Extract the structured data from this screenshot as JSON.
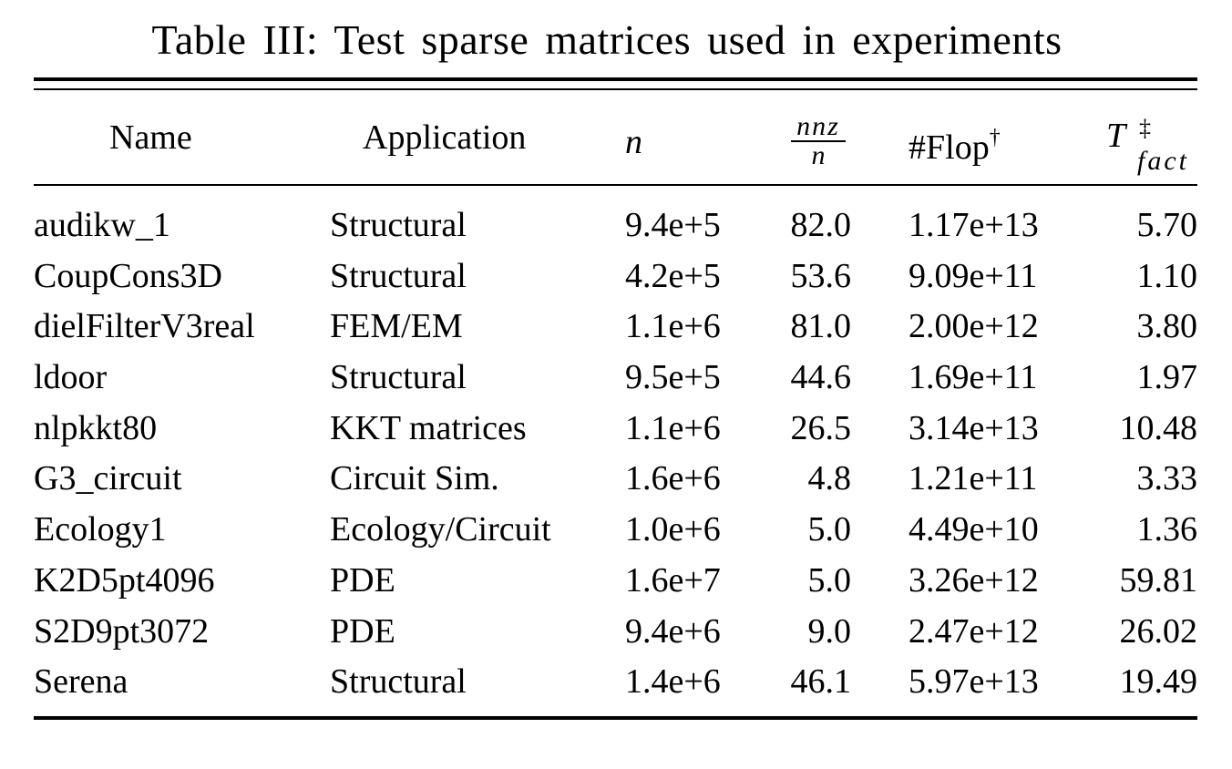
{
  "caption": "Table III: Test sparse matrices used in experiments",
  "headers": {
    "name": "Name",
    "application": "Application",
    "n": "n",
    "nnz_num": "nnz",
    "nnz_den": "n",
    "flop": "#Flop",
    "flop_mark": "†",
    "t_base": "T",
    "t_mark": "‡",
    "t_sub": "fact"
  },
  "rows": [
    {
      "name": "audikw_1",
      "application": "Structural",
      "n": "9.4e+5",
      "nnz_per_n": "82.0",
      "flop": "1.17e+13",
      "t_fact": "5.70"
    },
    {
      "name": "CoupCons3D",
      "application": "Structural",
      "n": "4.2e+5",
      "nnz_per_n": "53.6",
      "flop": "9.09e+11",
      "t_fact": "1.10"
    },
    {
      "name": "dielFilterV3real",
      "application": "FEM/EM",
      "n": "1.1e+6",
      "nnz_per_n": "81.0",
      "flop": "2.00e+12",
      "t_fact": "3.80"
    },
    {
      "name": "ldoor",
      "application": "Structural",
      "n": "9.5e+5",
      "nnz_per_n": "44.6",
      "flop": "1.69e+11",
      "t_fact": "1.97"
    },
    {
      "name": "nlpkkt80",
      "application": "KKT matrices",
      "n": "1.1e+6",
      "nnz_per_n": "26.5",
      "flop": "3.14e+13",
      "t_fact": "10.48"
    },
    {
      "name": "G3_circuit",
      "application": "Circuit Sim.",
      "n": "1.6e+6",
      "nnz_per_n": "4.8",
      "flop": "1.21e+11",
      "t_fact": "3.33"
    },
    {
      "name": "Ecology1",
      "application": "Ecology/Circuit",
      "n": "1.0e+6",
      "nnz_per_n": "5.0",
      "flop": "4.49e+10",
      "t_fact": "1.36"
    },
    {
      "name": "K2D5pt4096",
      "application": "PDE",
      "n": "1.6e+7",
      "nnz_per_n": "5.0",
      "flop": "3.26e+12",
      "t_fact": "59.81"
    },
    {
      "name": "S2D9pt3072",
      "application": "PDE",
      "n": "9.4e+6",
      "nnz_per_n": "9.0",
      "flop": "2.47e+12",
      "t_fact": "26.02"
    },
    {
      "name": "Serena",
      "application": "Structural",
      "n": "1.4e+6",
      "nnz_per_n": "46.1",
      "flop": "5.97e+13",
      "t_fact": "19.49"
    }
  ]
}
